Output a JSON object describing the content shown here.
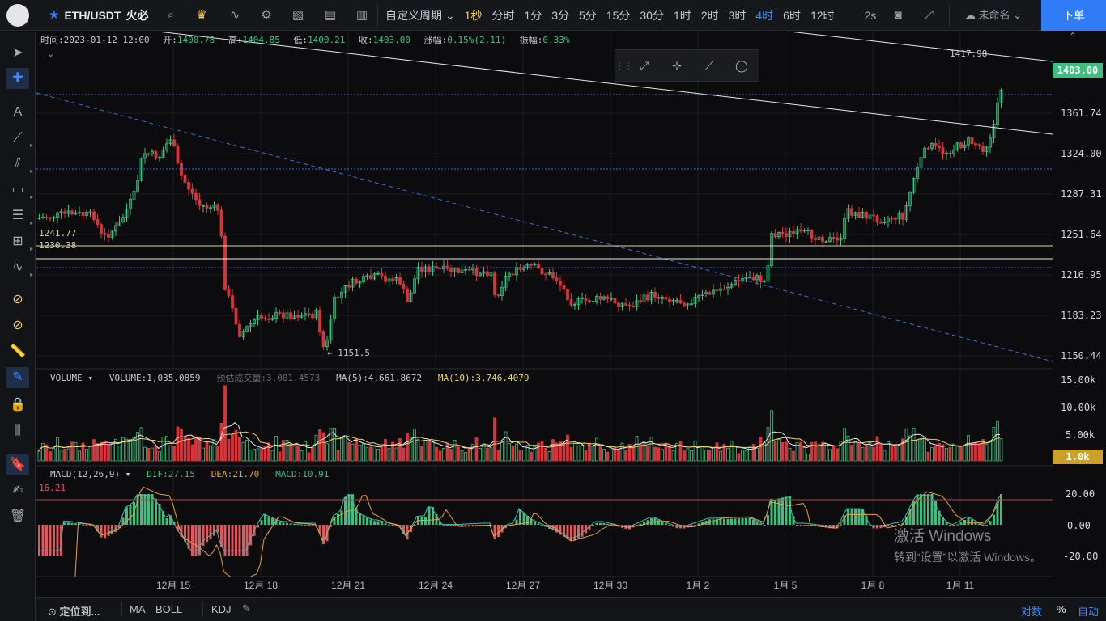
{
  "topbar": {
    "pair": "ETH/USDT",
    "exchange": "火必",
    "custom_period": "自定义周期",
    "periods": [
      "1秒",
      "分时",
      "1分",
      "3分",
      "5分",
      "15分",
      "30分",
      "1时",
      "2时",
      "3时",
      "4时",
      "6时",
      "12时"
    ],
    "active_period": "4时",
    "refresh": "2s",
    "unnamed": "未命名",
    "order_button": "下单"
  },
  "infobar": {
    "time_label": "时间:",
    "time": "2023-01-12 12:00",
    "open_label": "开:",
    "open": "1400.78",
    "high_label": "高:",
    "high": "1404.85",
    "low_label": "低:",
    "low": "1400.21",
    "close_label": "收:",
    "close": "1403.00",
    "change_label": "涨幅:",
    "change": "0.15%(2.11)",
    "amp_label": "振幅:",
    "amp": "0.33%"
  },
  "price_axis": [
    "1403.00",
    "1361.74",
    "1324.00",
    "1287.31",
    "1251.64",
    "1216.95",
    "1183.23",
    "1150.44"
  ],
  "current_price": "1403.00",
  "annotations": {
    "high": "1417.98",
    "low": "1151.5",
    "line1": "1241.77",
    "line2": "1230.38"
  },
  "volume": {
    "title": "VOLUME",
    "value_label": "VOLUME:1,035.0859",
    "estimate_label": "预估成交量:3,001.4573",
    "ma5_label": "MA(5):4,661.8672",
    "ma10_label": "MA(10):3,746.4079",
    "axis": [
      "15.00k",
      "10.00k",
      "5.00k"
    ],
    "current": "1.0k"
  },
  "macd": {
    "title": "MACD(12,26,9)",
    "dif": "DIF:27.15",
    "dea": "DEA:21.70",
    "macd": "MACD:10.91",
    "level": "16.21",
    "axis": [
      "20.00",
      "0.00",
      "-20.00"
    ]
  },
  "dates": [
    "12月 15",
    "12月 18",
    "12月 21",
    "12月 24",
    "12月 27",
    "12月 30",
    "1月 2",
    "1月 5",
    "1月 8",
    "1月 11"
  ],
  "bottombar": {
    "locate": "定位到...",
    "ma": "MA",
    "boll": "BOLL",
    "kdj": "KDJ",
    "log": "对数",
    "percent": "%",
    "auto": "自动"
  },
  "watermark": {
    "line1": "激活 Windows",
    "line2": "转到“设置”以激活 Windows。"
  },
  "colors": {
    "up": "#3fbf7f",
    "down": "#d8343b",
    "accent": "#2f7cf6",
    "selected": "#f5d15a"
  }
}
